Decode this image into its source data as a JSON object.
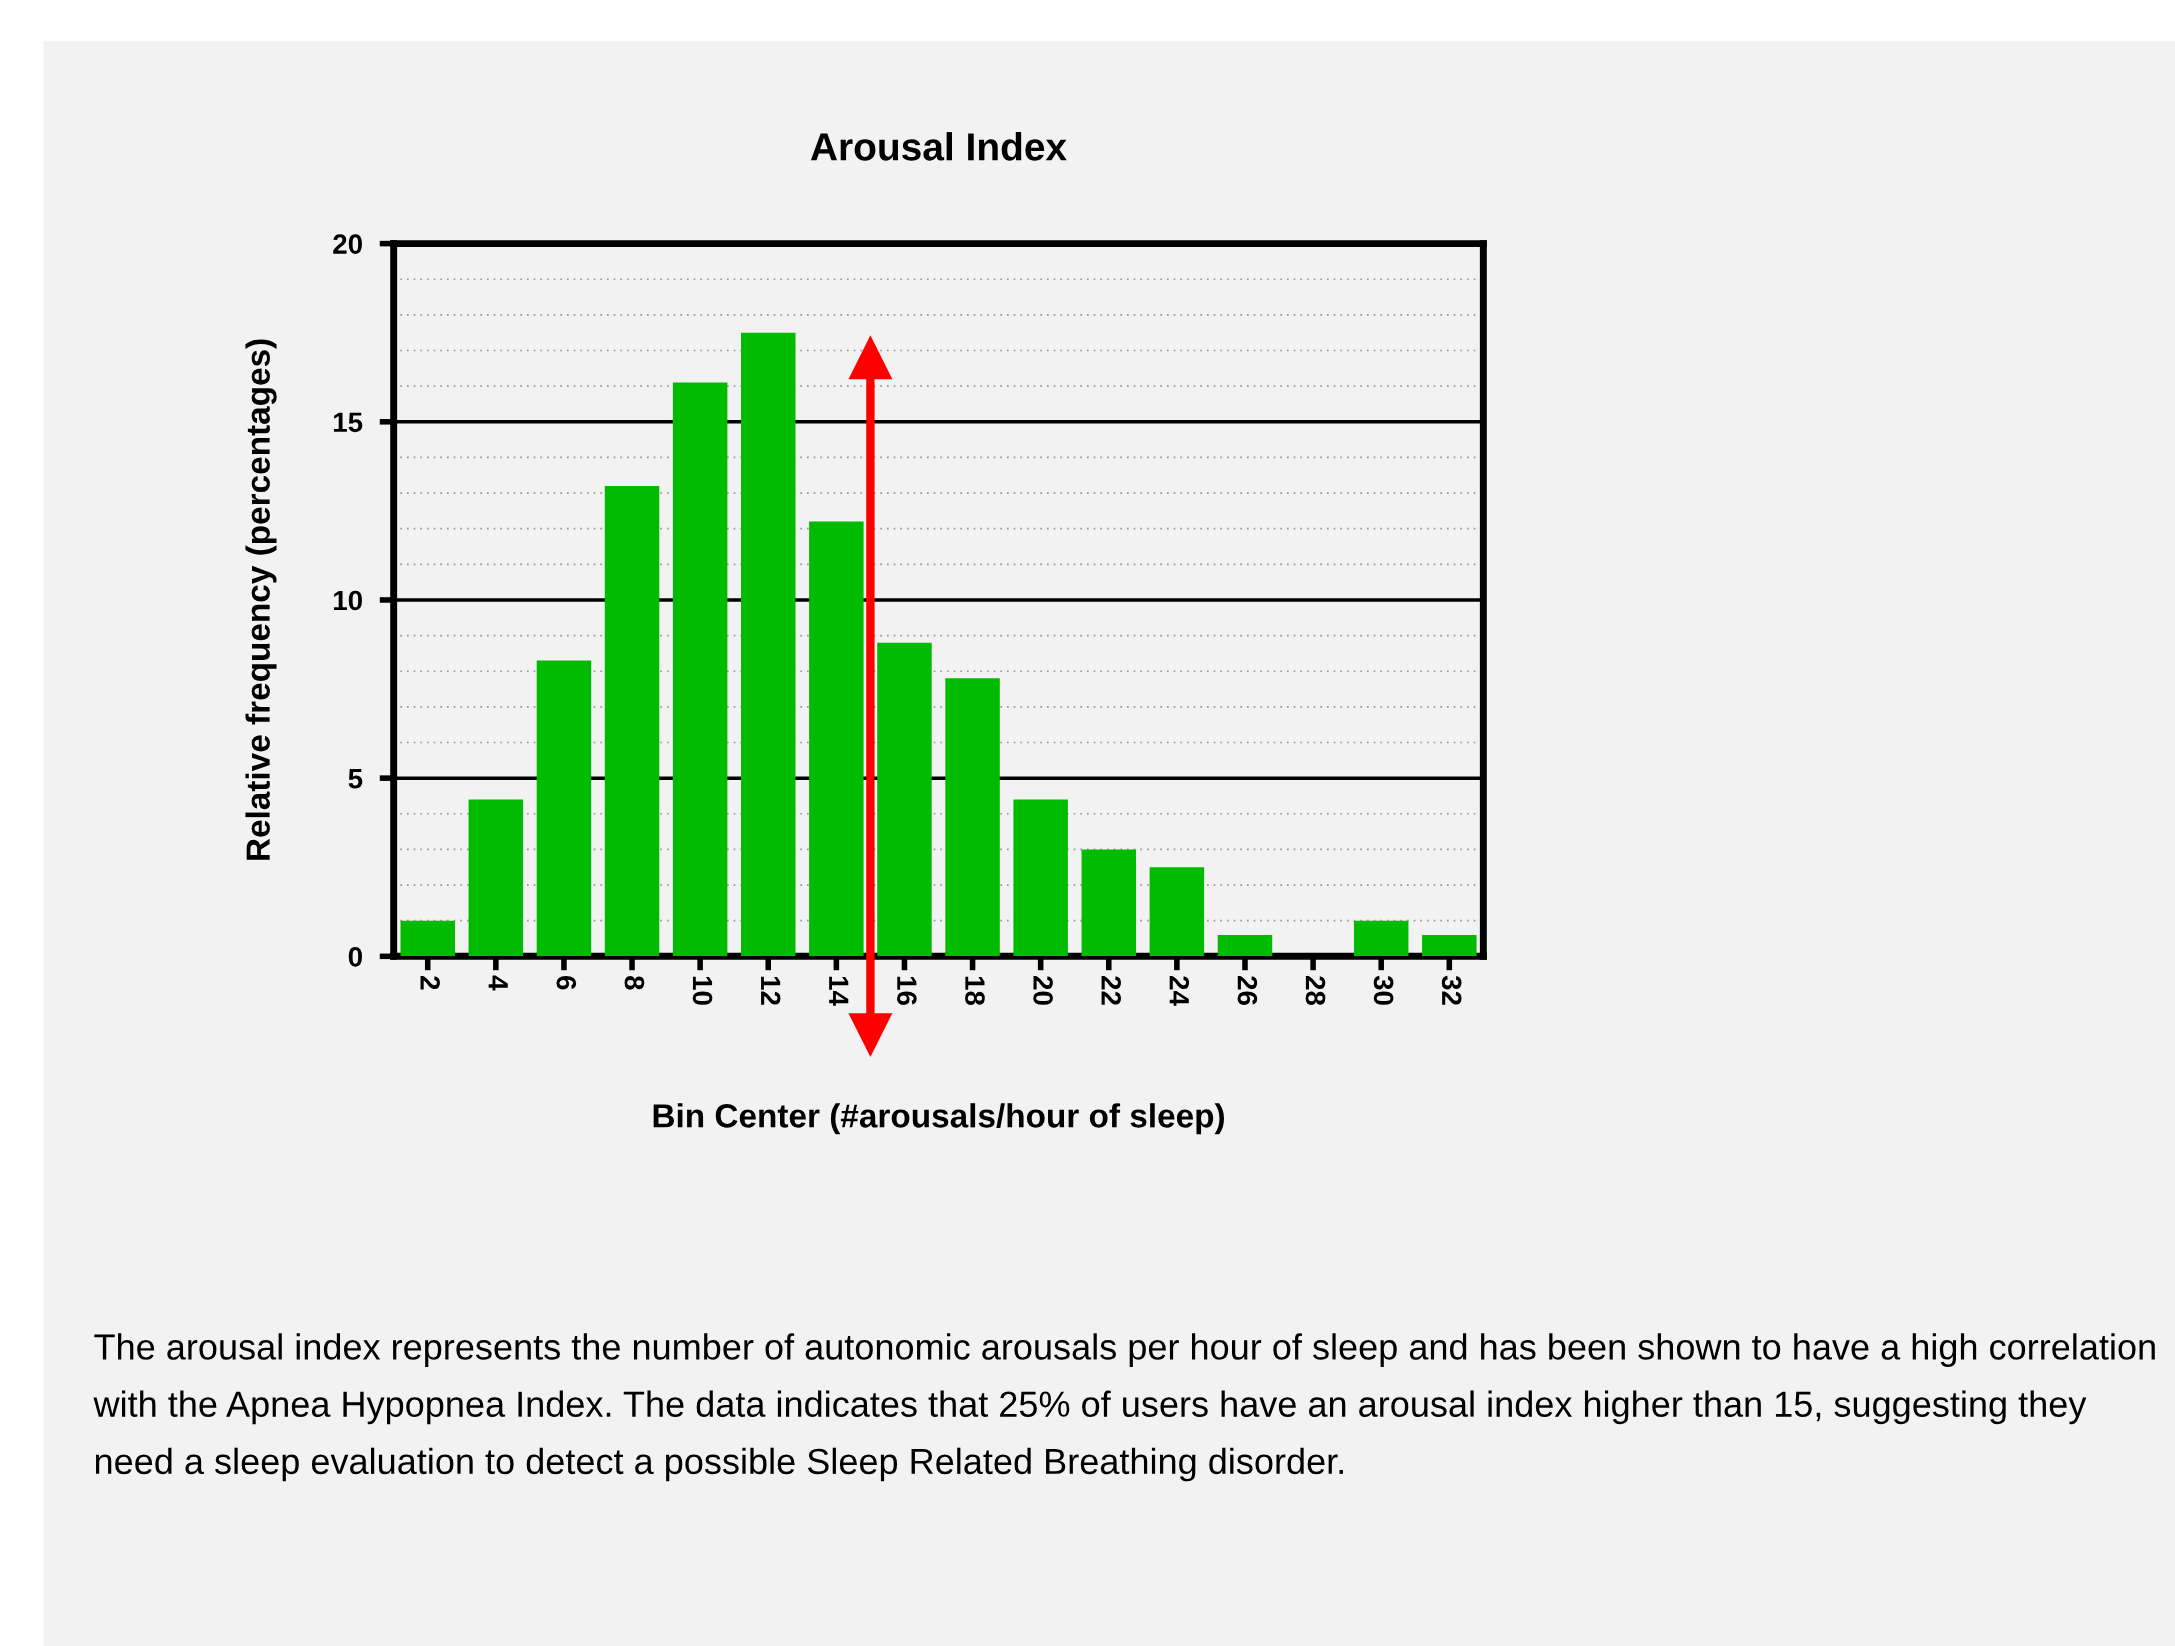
{
  "chart_data": {
    "type": "histogram",
    "title": "Arousal Index",
    "xlabel": "Bin Center (#arousals/hour of sleep)",
    "ylabel": "Relative frequency (percentages)",
    "bins": [
      1,
      3,
      5,
      7,
      9,
      11,
      13,
      15,
      17,
      19,
      21,
      23,
      25,
      27,
      29,
      31,
      33
    ],
    "values": [
      1.0,
      4.4,
      8.3,
      13.2,
      16.1,
      17.5,
      12.2,
      8.8,
      7.8,
      4.4,
      3.0,
      2.5,
      0.6,
      0,
      1.0,
      0.6
    ],
    "color": "#00bb00",
    "xlim": [
      1,
      33
    ],
    "xticks": [
      2,
      4,
      6,
      8,
      10,
      12,
      14,
      16,
      18,
      20,
      22,
      24,
      26,
      28,
      30,
      32
    ],
    "ylim": [
      0,
      20
    ],
    "yticks": [
      0,
      5,
      10,
      15,
      20
    ],
    "grid": "y",
    "ref_lines": [
      {
        "axis": "x",
        "value": 15,
        "color": "#ff0000"
      }
    ],
    "annotations": [
      "The arousal index represents the number of autonomic arousals per hour of sleep and has been shown to have a high correlation with the Apnea Hypopnea Index. The data indicates that 25% of users have an arousal index higher than 15, suggesting they need a sleep evaluation to detect a possible Sleep Related Breathing disorder."
    ]
  }
}
